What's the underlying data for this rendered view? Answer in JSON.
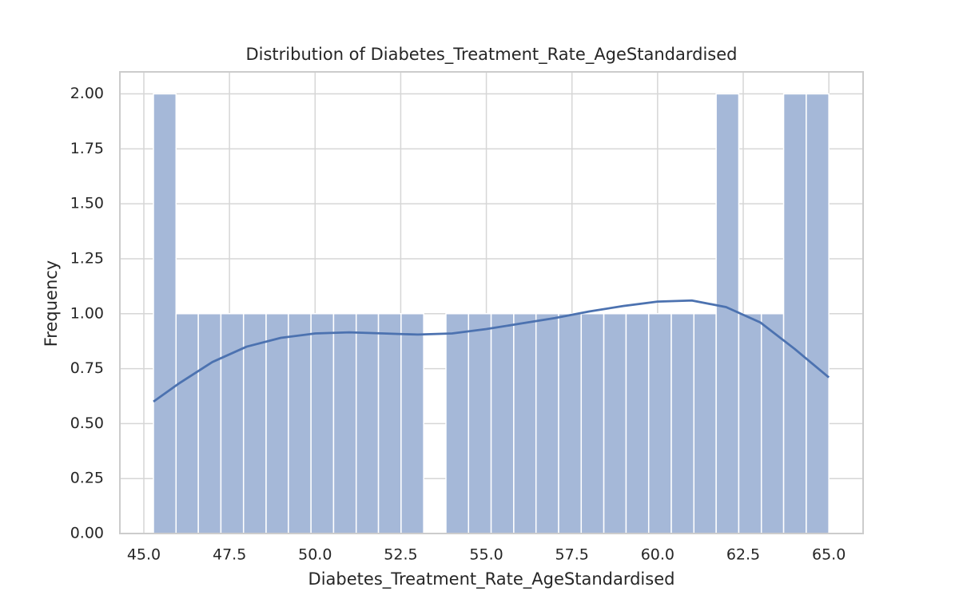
{
  "chart_data": {
    "type": "histogram",
    "title": "Distribution of Diabetes_Treatment_Rate_AgeStandardised",
    "x_label": "Diabetes_Treatment_Rate_AgeStandardised",
    "y_label": "Frequency",
    "bins": [
      45.28,
      45.94,
      46.59,
      47.25,
      47.91,
      48.57,
      49.22,
      49.88,
      50.54,
      51.2,
      51.85,
      52.51,
      53.17,
      53.82,
      54.48,
      55.14,
      55.8,
      56.45,
      57.11,
      57.77,
      58.43,
      59.08,
      59.74,
      60.4,
      61.06,
      61.71,
      62.37,
      63.03,
      63.68,
      64.34,
      65.0
    ],
    "values": [
      2,
      1,
      1,
      1,
      1,
      1,
      1,
      1,
      1,
      1,
      1,
      1,
      0,
      1,
      1,
      1,
      1,
      1,
      1,
      1,
      1,
      1,
      1,
      1,
      1,
      2,
      1,
      1,
      2,
      2
    ],
    "color": "#a5b8d8",
    "kde": {
      "color": "#4c72b0",
      "x": [
        45.28,
        46,
        47,
        48,
        49,
        50,
        51,
        52,
        53,
        54,
        55,
        56,
        57,
        58,
        59,
        60,
        61,
        62,
        63,
        64,
        65
      ],
      "y": [
        0.6,
        0.68,
        0.78,
        0.85,
        0.89,
        0.91,
        0.915,
        0.91,
        0.905,
        0.91,
        0.93,
        0.955,
        0.98,
        1.01,
        1.035,
        1.055,
        1.06,
        1.03,
        0.96,
        0.84,
        0.71
      ]
    },
    "xlim": [
      44.3,
      66.0
    ],
    "ylim": [
      0,
      2.1
    ],
    "xticks": [
      {
        "value": 45,
        "label": "45.0"
      },
      {
        "value": 47.5,
        "label": "47.5"
      },
      {
        "value": 50,
        "label": "50.0"
      },
      {
        "value": 52.5,
        "label": "52.5"
      },
      {
        "value": 55,
        "label": "55.0"
      },
      {
        "value": 57.5,
        "label": "57.5"
      },
      {
        "value": 60,
        "label": "60.0"
      },
      {
        "value": 62.5,
        "label": "62.5"
      },
      {
        "value": 65,
        "label": "65.0"
      }
    ],
    "yticks": [
      {
        "value": 0,
        "label": "0.00"
      },
      {
        "value": 0.25,
        "label": "0.25"
      },
      {
        "value": 0.5,
        "label": "0.50"
      },
      {
        "value": 0.75,
        "label": "0.75"
      },
      {
        "value": 1,
        "label": "1.00"
      },
      {
        "value": 1.25,
        "label": "1.25"
      },
      {
        "value": 1.5,
        "label": "1.50"
      },
      {
        "value": 1.75,
        "label": "1.75"
      },
      {
        "value": 2,
        "label": "2.00"
      }
    ],
    "grid": true
  }
}
